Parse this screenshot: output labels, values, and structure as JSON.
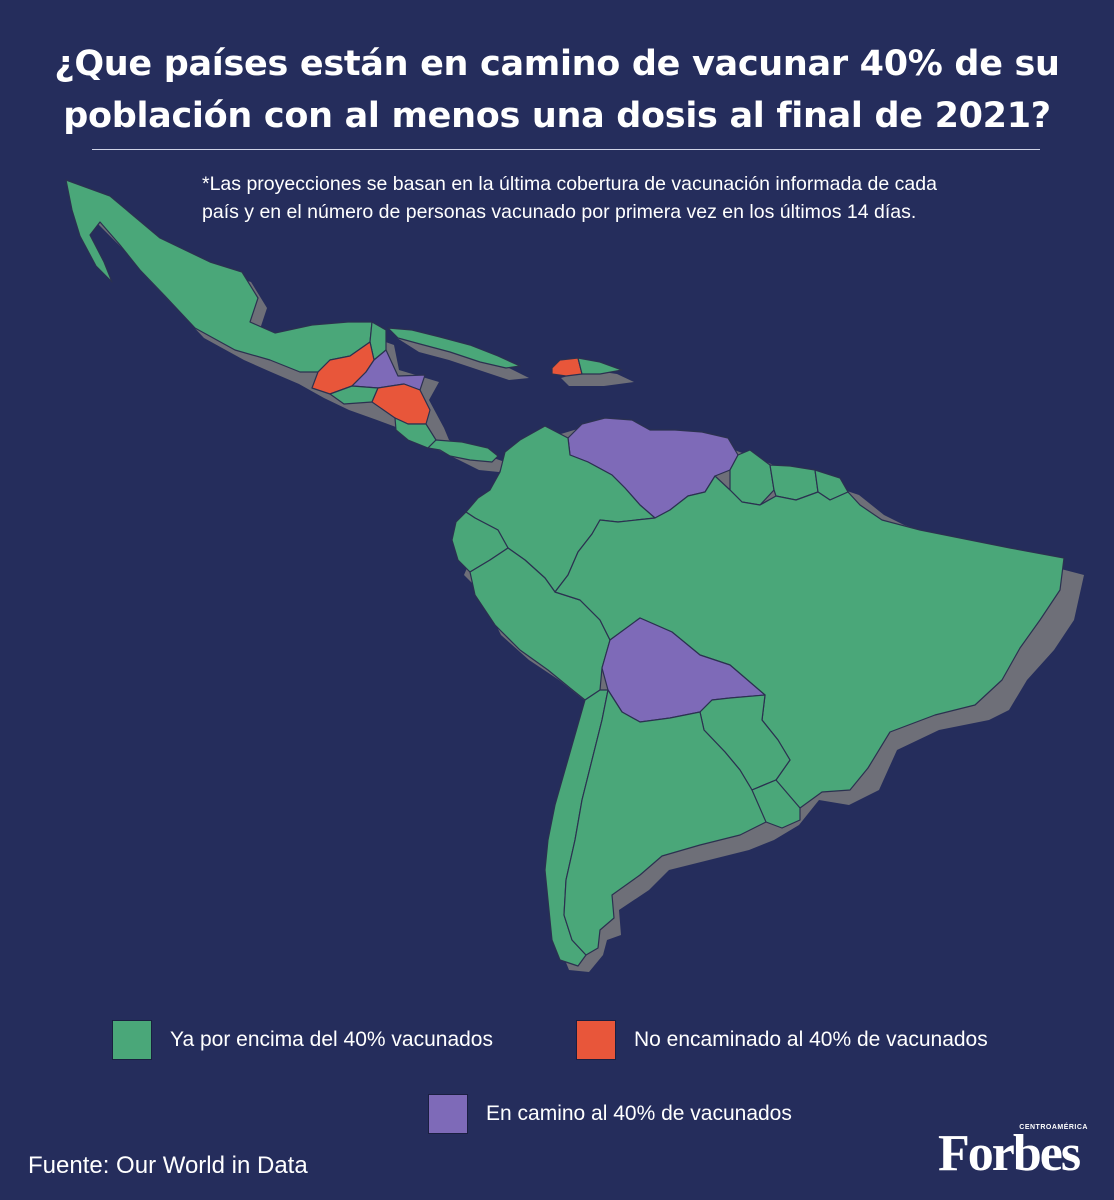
{
  "title_line1": "¿Que países están en camino de vacunar 40% de su",
  "title_line2": "población con al menos una dosis al final de 2021?",
  "note_line1": "*Las proyecciones se basan en la última cobertura de vacunación informada de cada",
  "note_line2": "país y en el número de personas vacunado por primera vez en los últimos 14 días.",
  "colors": {
    "background": "#252d5c",
    "above_40": "#4aa779",
    "not_on_track": "#e8563a",
    "on_track": "#7e6ab8",
    "shadow": "#6e6f78"
  },
  "legend": {
    "above_40": "Ya por encima del 40% vacunados",
    "not_on_track": "No encaminado al 40% de vacunados",
    "on_track": "En camino al 40% de vacunados"
  },
  "source": "Fuente: Our World in Data",
  "logo": {
    "main": "Forbes",
    "small": "CENTROAMÉRICA"
  },
  "map_regions": [
    {
      "name": "México",
      "status": "above_40"
    },
    {
      "name": "Guatemala",
      "status": "not_on_track"
    },
    {
      "name": "Belice",
      "status": "above_40"
    },
    {
      "name": "Honduras",
      "status": "on_track"
    },
    {
      "name": "El Salvador",
      "status": "above_40"
    },
    {
      "name": "Nicaragua",
      "status": "not_on_track"
    },
    {
      "name": "Costa Rica",
      "status": "above_40"
    },
    {
      "name": "Panamá",
      "status": "above_40"
    },
    {
      "name": "Cuba",
      "status": "above_40"
    },
    {
      "name": "Haití",
      "status": "not_on_track"
    },
    {
      "name": "República Dominicana",
      "status": "above_40"
    },
    {
      "name": "Venezuela",
      "status": "on_track"
    },
    {
      "name": "Colombia",
      "status": "above_40"
    },
    {
      "name": "Ecuador",
      "status": "above_40"
    },
    {
      "name": "Perú",
      "status": "above_40"
    },
    {
      "name": "Guyana",
      "status": "above_40"
    },
    {
      "name": "Surinam",
      "status": "above_40"
    },
    {
      "name": "Guayana Francesa",
      "status": "above_40"
    },
    {
      "name": "Brasil",
      "status": "above_40"
    },
    {
      "name": "Bolivia",
      "status": "on_track"
    },
    {
      "name": "Paraguay",
      "status": "above_40"
    },
    {
      "name": "Chile",
      "status": "above_40"
    },
    {
      "name": "Argentina",
      "status": "above_40"
    },
    {
      "name": "Uruguay",
      "status": "above_40"
    }
  ]
}
